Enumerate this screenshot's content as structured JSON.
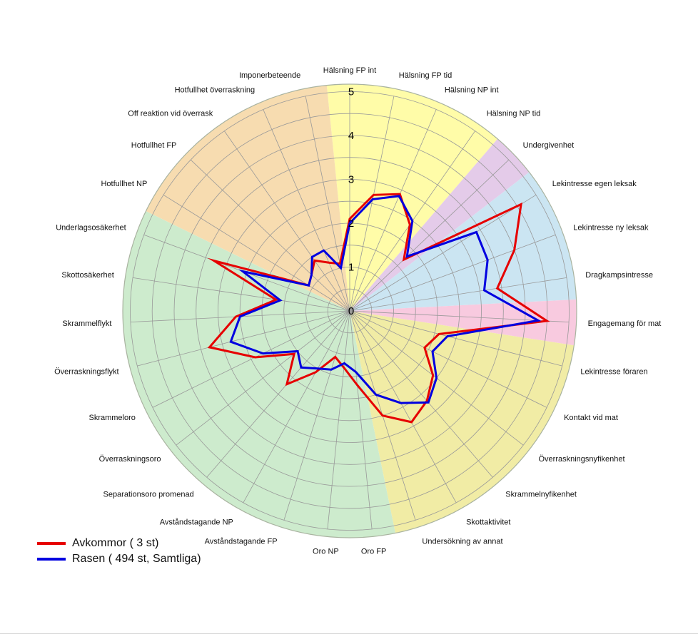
{
  "chart_data": {
    "type": "radar",
    "title": "",
    "axes": [
      "Hälsning FP int",
      "Hälsning FP tid",
      "Hälsning NP int",
      "Hälsning NP tid",
      "Undergivenhet",
      "Lekintresse egen leksak",
      "Lekintresse ny leksak",
      "Dragkampsintresse",
      "Engagemang för mat",
      "Lekintresse föraren",
      "Kontakt vid mat",
      "Överraskningsnyfikenhet",
      "Skrammelnyfikenhet",
      "Skottaktivitet",
      "Undersökning av annat",
      "Oro FP",
      "Oro NP",
      "Avståndstagande FP",
      "Avståndstagande NP",
      "Separationsoro promenad",
      "Överraskningsoro",
      "Skrammeloro",
      "Överraskningsflykt",
      "Skrammelflykt",
      "Skottosäkerhet",
      "Underlagsosäkerhet",
      "Hotfullhet NP",
      "Hotfullhet FP",
      "Off reaktion vid överrask",
      "Hotfullhet överraskning",
      "Imponerbeteende"
    ],
    "scale": {
      "min": 0,
      "max": 5,
      "ring_step": 0.5,
      "tick_labels": [
        "0",
        "1",
        "2",
        "3",
        "4",
        "5"
      ]
    },
    "series": [
      {
        "name": "Avkommor ( 3 st)",
        "color": "#e60000",
        "values": [
          2.1,
          2.7,
          2.9,
          2.4,
          1.7,
          4.6,
          4.0,
          3.4,
          4.5,
          2.1,
          1.9,
          2.4,
          2.7,
          2.9,
          2.5,
          1.7,
          1.3,
          1.1,
          1.6,
          2.2,
          1.6,
          2.4,
          3.3,
          2.6,
          1.7,
          3.3,
          1.1,
          1.2,
          1.4,
          1.2,
          1.1
        ]
      },
      {
        "name": "Rasen ( 494 st, Samtliga)",
        "color": "#0000e0",
        "values": [
          2.0,
          2.6,
          2.85,
          2.5,
          1.8,
          3.4,
          3.35,
          3.1,
          4.3,
          2.3,
          2.1,
          2.5,
          2.75,
          2.4,
          2.0,
          1.4,
          1.2,
          1.4,
          1.5,
          1.7,
          1.5,
          2.2,
          2.8,
          2.5,
          1.6,
          2.6,
          1.1,
          1.2,
          1.5,
          1.5,
          1.0
        ]
      }
    ],
    "zones": [
      {
        "color": "#fffca8",
        "from": 0,
        "to": 3
      },
      {
        "color": "#e4cbe9",
        "from": 4,
        "to": 4
      },
      {
        "color": "#cbe5f2",
        "from": 5,
        "to": 7
      },
      {
        "color": "#f8cadf",
        "from": 8,
        "to": 8
      },
      {
        "color": "#f1eca5",
        "from": 9,
        "to": 14
      },
      {
        "color": "#cdebcd",
        "from": 15,
        "to": 25
      },
      {
        "color": "#f7dcb0",
        "from": 26,
        "to": 30
      }
    ],
    "grid_color": "#999999",
    "legend_position": "bottom-left"
  }
}
